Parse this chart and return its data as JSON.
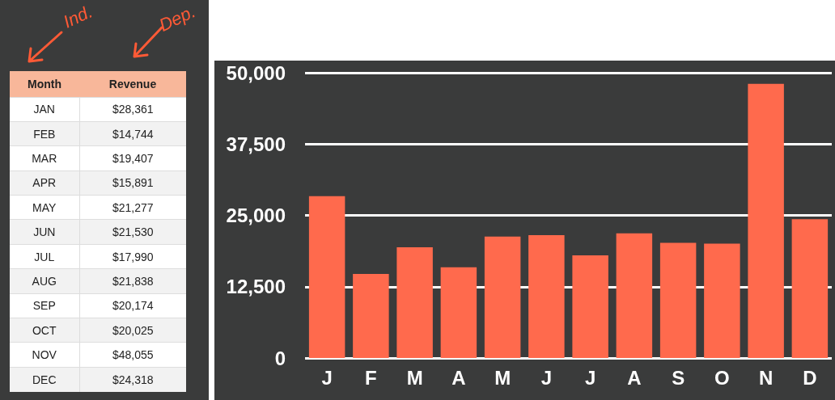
{
  "chart_data": [
    {
      "type": "other",
      "xlabel": "Month",
      "ylabel": "Revenue",
      "annotations": [
        "Ind.",
        "Dep."
      ],
      "categories": [
        "JAN",
        "FEB",
        "MAR",
        "APR",
        "MAY",
        "JUN",
        "JUL",
        "AUG",
        "SEP",
        "OCT",
        "NOV",
        "DEC"
      ],
      "value_labels": [
        "$28,361",
        "$14,744",
        "$19,407",
        "$15,891",
        "$21,277",
        "$21,530",
        "$17,990",
        "$21,838",
        "$20,174",
        "$20,025",
        "$48,055",
        "$24,318"
      ]
    },
    {
      "type": "bar",
      "color": "#ff6a4d",
      "grid": "y",
      "categories": [
        "J",
        "F",
        "M",
        "A",
        "M",
        "J",
        "J",
        "A",
        "S",
        "O",
        "N",
        "D"
      ],
      "values": [
        28361,
        14744,
        19407,
        15891,
        21277,
        21530,
        17990,
        21838,
        20174,
        20025,
        48055,
        24318
      ],
      "ylim": [
        0,
        50000
      ],
      "yticks": [
        {
          "value": 0,
          "label": "0"
        },
        {
          "value": 12500,
          "label": "12,500"
        },
        {
          "value": 25000,
          "label": "25,000"
        },
        {
          "value": 37500,
          "label": "37,500"
        },
        {
          "value": 50000,
          "label": "50,000"
        }
      ]
    }
  ]
}
